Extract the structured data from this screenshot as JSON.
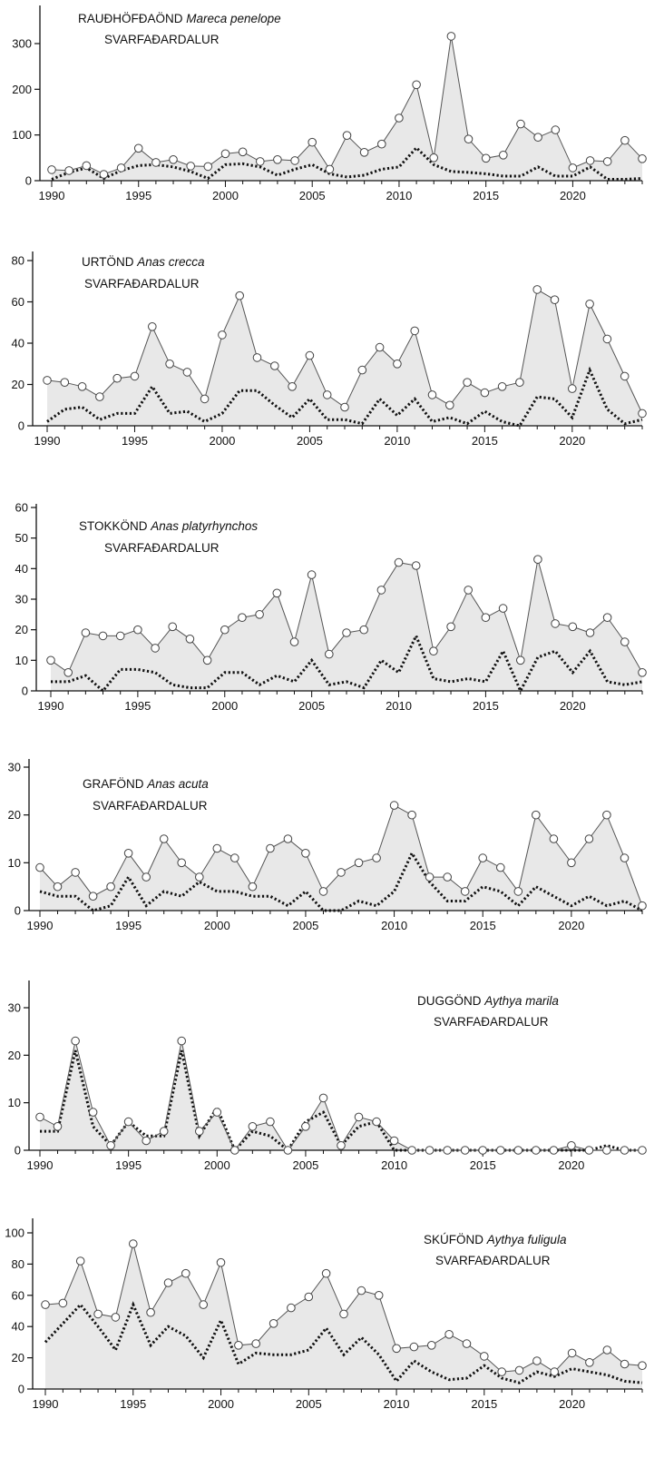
{
  "chart_data": [
    {
      "type": "area",
      "title_common": "RAUÐHÖFÐAÖND",
      "title_latin": "Mareca penelope",
      "subtitle": "SVARFAÐARDALUR",
      "xlim": [
        1990,
        2024
      ],
      "ylim": [
        0,
        300
      ],
      "xticks": [
        1990,
        1995,
        2000,
        2005,
        2010,
        2015,
        2020
      ],
      "yticks": [
        0,
        100,
        200,
        300
      ],
      "x": [
        1990,
        1991,
        1992,
        1993,
        1994,
        1995,
        1996,
        1997,
        1998,
        1999,
        2000,
        2001,
        2002,
        2003,
        2004,
        2005,
        2006,
        2007,
        2008,
        2009,
        2010,
        2011,
        2012,
        2013,
        2014,
        2015,
        2016,
        2017,
        2018,
        2019,
        2020,
        2021,
        2022,
        2023,
        2024
      ],
      "series": [
        {
          "style": "solid-markers",
          "values": [
            24,
            22,
            33,
            14,
            28,
            71,
            40,
            46,
            32,
            31,
            59,
            63,
            42,
            46,
            44,
            84,
            25,
            99,
            62,
            80,
            137,
            210,
            50,
            316,
            91,
            49,
            56,
            124,
            95,
            111,
            28,
            44,
            42,
            88,
            48
          ]
        },
        {
          "style": "dotted",
          "values": [
            3,
            18,
            28,
            5,
            22,
            33,
            35,
            30,
            20,
            5,
            35,
            37,
            30,
            12,
            25,
            35,
            15,
            8,
            12,
            25,
            30,
            72,
            35,
            20,
            18,
            15,
            10,
            10,
            30,
            10,
            10,
            30,
            3,
            3,
            5
          ]
        }
      ]
    },
    {
      "type": "area",
      "title_common": "URTÖND",
      "title_latin": "Anas crecca",
      "subtitle": "SVARFAÐARDALUR",
      "xlim": [
        1990,
        2024
      ],
      "ylim": [
        0,
        90
      ],
      "xticks": [
        1990,
        1995,
        2000,
        2005,
        2010,
        2015,
        2020
      ],
      "yticks": [
        0,
        20,
        40,
        60,
        80
      ],
      "x": [
        1990,
        1991,
        1992,
        1993,
        1994,
        1995,
        1996,
        1997,
        1998,
        1999,
        2000,
        2001,
        2002,
        2003,
        2004,
        2005,
        2006,
        2007,
        2008,
        2009,
        2010,
        2011,
        2012,
        2013,
        2014,
        2015,
        2016,
        2017,
        2018,
        2019,
        2020,
        2021,
        2022,
        2023,
        2024
      ],
      "series": [
        {
          "style": "solid-markers",
          "values": [
            22,
            21,
            19,
            14,
            23,
            24,
            48,
            30,
            26,
            13,
            44,
            63,
            33,
            29,
            19,
            34,
            15,
            9,
            27,
            38,
            30,
            46,
            15,
            10,
            21,
            16,
            19,
            21,
            66,
            61,
            18,
            59,
            42,
            24,
            6
          ]
        },
        {
          "style": "dotted",
          "values": [
            2,
            8,
            9,
            3,
            6,
            6,
            19,
            6,
            7,
            2,
            6,
            17,
            17,
            10,
            4,
            13,
            3,
            3,
            1,
            13,
            5,
            13,
            2,
            4,
            1,
            7,
            2,
            0,
            14,
            13,
            4,
            27,
            8,
            1,
            3
          ]
        }
      ]
    },
    {
      "type": "area",
      "title_common": "STOKKÖND",
      "title_latin": "Anas platyrhynchos",
      "subtitle": "SVARFAÐARDALUR",
      "xlim": [
        1990,
        2024
      ],
      "ylim": [
        0,
        60
      ],
      "xticks": [
        1990,
        1995,
        2000,
        2005,
        2010,
        2015,
        2020
      ],
      "yticks": [
        0,
        10,
        20,
        30,
        40,
        50,
        60
      ],
      "x": [
        1990,
        1991,
        1992,
        1993,
        1994,
        1995,
        1996,
        1997,
        1998,
        1999,
        2000,
        2001,
        2002,
        2003,
        2004,
        2005,
        2006,
        2007,
        2008,
        2009,
        2010,
        2011,
        2012,
        2013,
        2014,
        2015,
        2016,
        2017,
        2018,
        2019,
        2020,
        2021,
        2022,
        2023,
        2024
      ],
      "series": [
        {
          "style": "solid-markers",
          "values": [
            10,
            6,
            19,
            18,
            18,
            20,
            14,
            21,
            17,
            10,
            20,
            24,
            25,
            32,
            16,
            38,
            12,
            19,
            20,
            33,
            42,
            41,
            13,
            21,
            33,
            24,
            27,
            10,
            43,
            22,
            21,
            19,
            24,
            16,
            6
          ]
        },
        {
          "style": "dotted",
          "values": [
            3,
            3,
            5,
            0,
            7,
            7,
            6,
            2,
            1,
            1,
            6,
            6,
            2,
            5,
            3,
            10,
            2,
            3,
            1,
            10,
            6,
            18,
            4,
            3,
            4,
            3,
            13,
            0,
            11,
            13,
            6,
            13,
            3,
            2,
            3
          ]
        }
      ]
    },
    {
      "type": "area",
      "title_common": "GRAFÖND",
      "title_latin": "Anas acuta",
      "subtitle": "SVARFAÐARDALUR",
      "xlim": [
        1990,
        2024
      ],
      "ylim": [
        0,
        30
      ],
      "xticks": [
        1990,
        1995,
        2000,
        2005,
        2010,
        2015,
        2020
      ],
      "yticks": [
        0,
        10,
        20,
        30
      ],
      "x": [
        1990,
        1991,
        1992,
        1993,
        1994,
        1995,
        1996,
        1997,
        1998,
        1999,
        2000,
        2001,
        2002,
        2003,
        2004,
        2005,
        2006,
        2007,
        2008,
        2009,
        2010,
        2011,
        2012,
        2013,
        2014,
        2015,
        2016,
        2017,
        2018,
        2019,
        2020,
        2021,
        2022,
        2023,
        2024
      ],
      "series": [
        {
          "style": "solid-markers",
          "values": [
            9,
            5,
            8,
            3,
            5,
            12,
            7,
            15,
            10,
            7,
            13,
            11,
            5,
            13,
            15,
            12,
            4,
            8,
            10,
            11,
            22,
            20,
            7,
            7,
            4,
            11,
            9,
            4,
            20,
            15,
            10,
            15,
            20,
            11,
            1
          ]
        },
        {
          "style": "dotted",
          "values": [
            4,
            3,
            3,
            0,
            1,
            7,
            1,
            4,
            3,
            6,
            4,
            4,
            3,
            3,
            1,
            4,
            0,
            0,
            2,
            1,
            4,
            12,
            6,
            2,
            2,
            5,
            4,
            1,
            5,
            3,
            1,
            3,
            1,
            2,
            0
          ]
        }
      ]
    },
    {
      "type": "area",
      "title_common": "DUGGÖND",
      "title_latin": "Aythya marila",
      "subtitle": "SVARFAÐARDALUR",
      "xlim": [
        1990,
        2024
      ],
      "ylim": [
        0,
        35
      ],
      "xticks": [
        1990,
        1995,
        2000,
        2005,
        2010,
        2015,
        2020
      ],
      "yticks": [
        0,
        10,
        20,
        30
      ],
      "x": [
        1990,
        1991,
        1992,
        1993,
        1994,
        1995,
        1996,
        1997,
        1998,
        1999,
        2000,
        2001,
        2002,
        2003,
        2004,
        2005,
        2006,
        2007,
        2008,
        2009,
        2010,
        2011,
        2012,
        2013,
        2014,
        2015,
        2016,
        2017,
        2018,
        2019,
        2020,
        2021,
        2022,
        2023,
        2024
      ],
      "series": [
        {
          "style": "solid-markers",
          "values": [
            7,
            5,
            23,
            8,
            1,
            6,
            2,
            4,
            23,
            4,
            8,
            0,
            5,
            6,
            0,
            5,
            11,
            1,
            7,
            6,
            2,
            0,
            0,
            0,
            0,
            0,
            0,
            0,
            0,
            0,
            1,
            0,
            0,
            0,
            0
          ]
        },
        {
          "style": "dotted",
          "values": [
            4,
            4,
            21,
            5,
            1,
            6,
            3,
            3,
            21,
            3,
            9,
            0,
            4,
            3,
            0,
            6,
            8,
            1,
            5,
            6,
            0,
            0,
            0,
            0,
            0,
            0,
            0,
            0,
            0,
            0,
            0,
            0,
            1,
            0,
            0
          ]
        }
      ]
    },
    {
      "type": "area",
      "title_common": "SKÚFÖND",
      "title_latin": "Aythya fuligula",
      "subtitle": "SVARFAÐARDALUR",
      "xlim": [
        1990,
        2024
      ],
      "ylim": [
        0,
        110
      ],
      "xticks": [
        1990,
        1995,
        2000,
        2005,
        2010,
        2015,
        2020
      ],
      "yticks": [
        0,
        20,
        40,
        60,
        80,
        100
      ],
      "x": [
        1990,
        1991,
        1992,
        1993,
        1994,
        1995,
        1996,
        1997,
        1998,
        1999,
        2000,
        2001,
        2002,
        2003,
        2004,
        2005,
        2006,
        2007,
        2008,
        2009,
        2010,
        2011,
        2012,
        2013,
        2014,
        2015,
        2016,
        2017,
        2018,
        2019,
        2020,
        2021,
        2022,
        2023,
        2024
      ],
      "series": [
        {
          "style": "solid-markers",
          "values": [
            54,
            55,
            82,
            48,
            46,
            93,
            49,
            68,
            74,
            54,
            81,
            28,
            29,
            42,
            52,
            59,
            74,
            48,
            63,
            60,
            26,
            27,
            28,
            35,
            29,
            21,
            11,
            12,
            18,
            11,
            23,
            17,
            25,
            16,
            15
          ]
        },
        {
          "style": "dotted",
          "values": [
            30,
            42,
            54,
            40,
            25,
            54,
            28,
            40,
            34,
            20,
            44,
            16,
            23,
            22,
            22,
            25,
            39,
            22,
            33,
            22,
            5,
            18,
            11,
            6,
            7,
            15,
            7,
            4,
            11,
            8,
            13,
            11,
            9,
            5,
            4
          ]
        }
      ]
    }
  ]
}
